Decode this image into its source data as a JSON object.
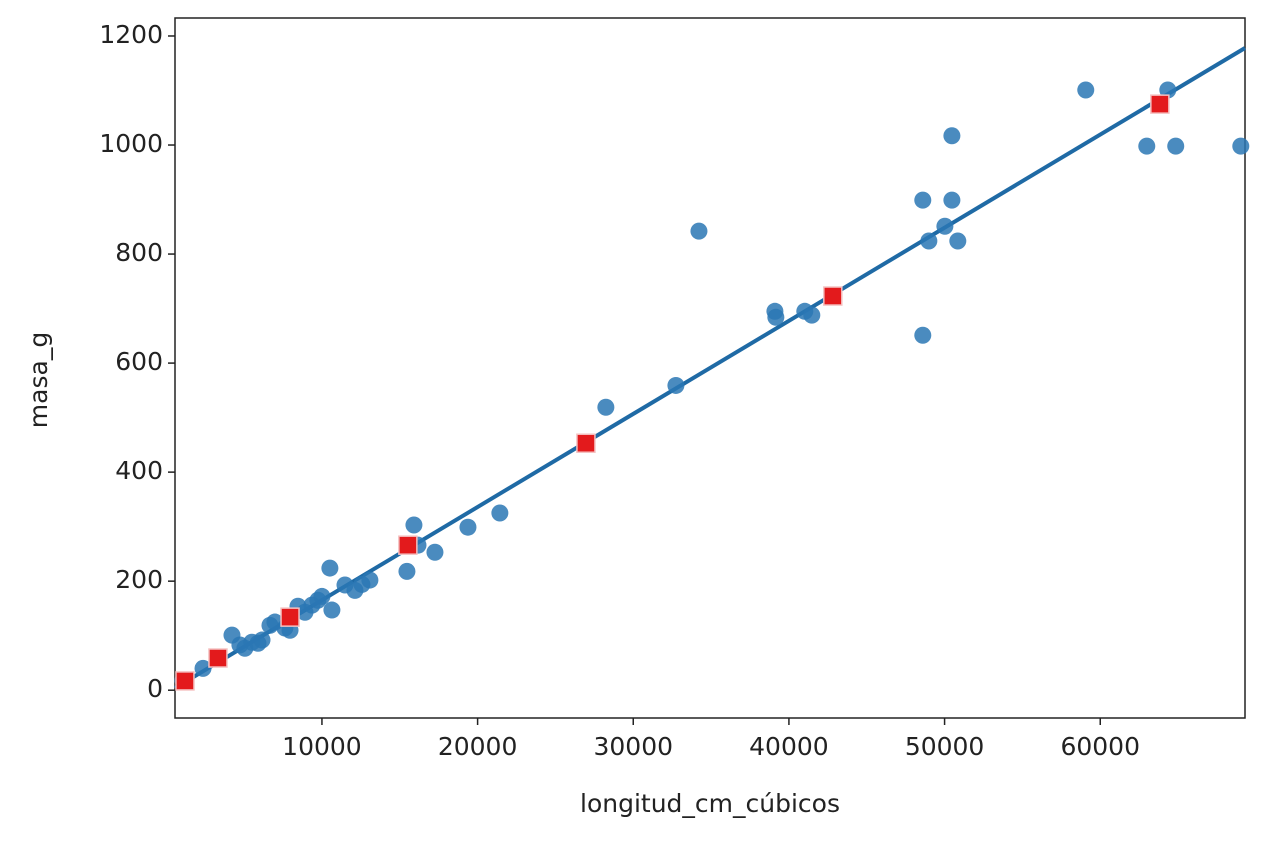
{
  "chart_data": {
    "type": "scatter",
    "x_label": "longitud_cm_cúbicos",
    "y_label": "masa_g",
    "xlim": [
      560,
      69300
    ],
    "ylim": [
      -51,
      1233
    ],
    "xticks": [
      10000,
      20000,
      30000,
      40000,
      50000,
      60000
    ],
    "yticks": [
      0,
      200,
      400,
      600,
      800,
      1000,
      1200
    ],
    "series": [
      {
        "style": "circle",
        "color": "#2a77b4",
        "x": [
          1070,
          2360,
          4220,
          4730,
          5050,
          5500,
          5890,
          6150,
          6660,
          6980,
          7620,
          7950,
          8460,
          8910,
          9360,
          9740,
          10000,
          10510,
          10640,
          11480,
          12120,
          12570,
          13080,
          15460,
          15910,
          16170,
          17260,
          19380,
          21430,
          28240,
          32740,
          34220,
          39100,
          39160,
          41020,
          41470,
          48600,
          48600,
          48990,
          50020,
          50470,
          50470,
          50850,
          59070,
          62990,
          64340,
          64850,
          69030
        ],
        "y": [
          18,
          40,
          101,
          83,
          77,
          88,
          86,
          92,
          119,
          125,
          114,
          110,
          154,
          143,
          156,
          165,
          172,
          224,
          147,
          193,
          183,
          194,
          202,
          218,
          303,
          266,
          253,
          299,
          325,
          519,
          559,
          842,
          695,
          684,
          695,
          688,
          651,
          899,
          824,
          851,
          899,
          1017,
          824,
          1101,
          998,
          1101,
          998,
          998
        ]
      },
      {
        "style": "line",
        "color": "#1f6aa5",
        "x": [
          560,
          69300
        ],
        "y": [
          4,
          1178
        ]
      },
      {
        "style": "square",
        "color": "#e31a1c",
        "x": [
          1200,
          3320,
          7950,
          15520,
          26960,
          42820,
          63830
        ],
        "y": [
          17,
          59,
          134,
          266,
          453,
          723,
          1075
        ]
      }
    ]
  }
}
